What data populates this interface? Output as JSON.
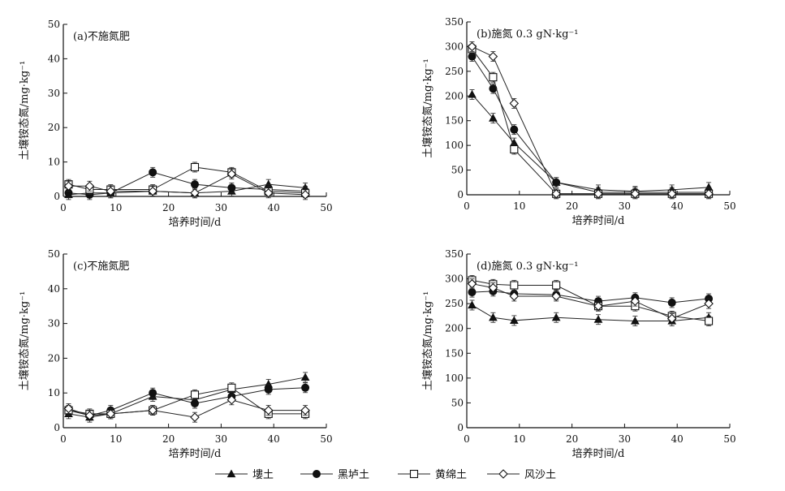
{
  "chart_data": [
    {
      "type": "line",
      "title": "(a)不施氮肥",
      "xlabel": "培养时间/d",
      "ylabel": "土壤铵态氮/mg·kg⁻¹",
      "xlim": [
        0,
        50
      ],
      "ylim": [
        0,
        50
      ],
      "xticks": [
        0,
        10,
        20,
        30,
        40,
        50
      ],
      "yticks": [
        0,
        10,
        20,
        30,
        40,
        50
      ],
      "x": [
        1,
        5,
        9,
        17,
        25,
        32,
        39,
        46
      ],
      "series": [
        {
          "name": "塿土",
          "marker": "triangle",
          "values": [
            0.5,
            1,
            1,
            1.5,
            1,
            1.5,
            3.5,
            2.5
          ]
        },
        {
          "name": "黑垆土",
          "marker": "circle",
          "values": [
            1,
            0.5,
            1,
            7,
            3.5,
            2.5,
            2,
            1.5
          ]
        },
        {
          "name": "黄绵土",
          "marker": "square",
          "values": [
            3.5,
            2,
            2,
            2,
            8.5,
            7,
            1.5,
            1
          ]
        },
        {
          "name": "风沙土",
          "marker": "diamond",
          "values": [
            3,
            3,
            1.5,
            1.5,
            1,
            6.5,
            1,
            0.5
          ]
        }
      ]
    },
    {
      "type": "line",
      "title": "(b)施氮 0.3 gN·kg⁻¹",
      "xlabel": "培养时间/d",
      "ylabel": "土壤铵态氮/mg·kg⁻¹",
      "xlim": [
        0,
        50
      ],
      "ylim": [
        0,
        350
      ],
      "xticks": [
        0,
        10,
        20,
        30,
        40,
        50
      ],
      "yticks": [
        0,
        50,
        100,
        150,
        200,
        250,
        300,
        350
      ],
      "x": [
        1,
        5,
        9,
        17,
        25,
        32,
        39,
        46
      ],
      "series": [
        {
          "name": "塿土",
          "marker": "triangle",
          "values": [
            203,
            155,
            105,
            25,
            10,
            7,
            10,
            15
          ]
        },
        {
          "name": "黑垆土",
          "marker": "circle",
          "values": [
            280,
            215,
            132,
            25,
            5,
            5,
            5,
            5
          ]
        },
        {
          "name": "黄绵土",
          "marker": "square",
          "values": [
            295,
            238,
            92,
            2,
            2,
            2,
            2,
            2
          ]
        },
        {
          "name": "风沙土",
          "marker": "diamond",
          "values": [
            300,
            280,
            185,
            2,
            2,
            2,
            2,
            2
          ]
        }
      ]
    },
    {
      "type": "line",
      "title": "(c)不施氮肥",
      "xlabel": "培养时间/d",
      "ylabel": "土壤铵态氮/mg·kg⁻¹",
      "xlim": [
        0,
        50
      ],
      "ylim": [
        0,
        50
      ],
      "xticks": [
        0,
        10,
        20,
        30,
        40,
        50
      ],
      "yticks": [
        0,
        10,
        20,
        30,
        40,
        50
      ],
      "x": [
        1,
        5,
        9,
        17,
        25,
        32,
        39,
        46
      ],
      "series": [
        {
          "name": "塿土",
          "marker": "triangle",
          "values": [
            4,
            3,
            4,
            9,
            8,
            11,
            12.5,
            14.5
          ]
        },
        {
          "name": "黑垆土",
          "marker": "circle",
          "values": [
            5,
            3.5,
            5,
            10,
            7,
            9,
            11,
            11.5
          ]
        },
        {
          "name": "黄绵土",
          "marker": "square",
          "values": [
            5,
            4,
            4,
            5,
            9.5,
            11.5,
            4,
            4
          ]
        },
        {
          "name": "风沙土",
          "marker": "diamond",
          "values": [
            5.5,
            3.5,
            4,
            5,
            3,
            8,
            5,
            5
          ]
        }
      ]
    },
    {
      "type": "line",
      "title": "(d)施氮 0.3 gN·kg⁻¹",
      "xlabel": "培养时间/d",
      "ylabel": "土壤铵态氮/mg·kg⁻¹",
      "xlim": [
        0,
        50
      ],
      "ylim": [
        0,
        350
      ],
      "xticks": [
        0,
        10,
        20,
        30,
        40,
        50
      ],
      "yticks": [
        0,
        50,
        100,
        150,
        200,
        250,
        300,
        350
      ],
      "x": [
        1,
        5,
        9,
        17,
        25,
        32,
        39,
        46
      ],
      "series": [
        {
          "name": "塿土",
          "marker": "triangle",
          "values": [
            247,
            222,
            216,
            222,
            218,
            215,
            215,
            222
          ]
        },
        {
          "name": "黑垆土",
          "marker": "circle",
          "values": [
            273,
            275,
            270,
            268,
            255,
            262,
            252,
            260
          ]
        },
        {
          "name": "黄绵土",
          "marker": "square",
          "values": [
            297,
            289,
            287,
            287,
            245,
            245,
            225,
            215
          ]
        },
        {
          "name": "风沙土",
          "marker": "diamond",
          "values": [
            290,
            282,
            265,
            265,
            245,
            255,
            220,
            250
          ]
        }
      ]
    }
  ],
  "legend": {
    "placement": "bottom",
    "items": [
      {
        "label": "塿土",
        "marker": "triangle"
      },
      {
        "label": "黑垆土",
        "marker": "circle"
      },
      {
        "label": "黄绵土",
        "marker": "square"
      },
      {
        "label": "风沙土",
        "marker": "diamond"
      }
    ]
  }
}
